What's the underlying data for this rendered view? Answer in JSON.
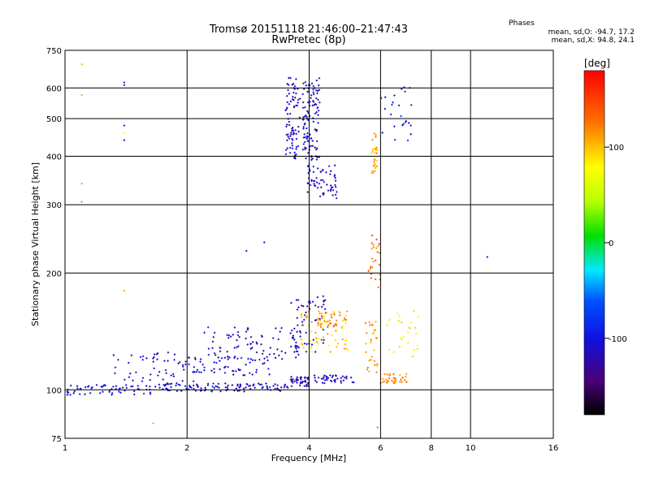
{
  "header": {
    "title_line1": "Tromsø 20151118 21:46:00–21:47:43",
    "title_line2": "RwPretec (8p)",
    "stats_title": "Phases",
    "stats_o": "mean, sd,O: -94.7, 17.2",
    "stats_x": "mean, sd,X:  94.8, 24.1"
  },
  "colorbar": {
    "unit_label": "[deg]",
    "range": [
      -180,
      180
    ],
    "ticks": [
      {
        "value": 100,
        "label": "100"
      },
      {
        "value": 0,
        "label": "0"
      },
      {
        "value": -100,
        "label": "-100"
      }
    ]
  },
  "chart_data": {
    "type": "scatter",
    "title": "Tromsø 20151118 21:46:00–21:47:43",
    "subtitle": "RwPretec (8p)",
    "xlabel": "Frequency [MHz]",
    "ylabel": "Stationary phase Virtual Height [km]",
    "xscale": "log",
    "yscale": "log",
    "xlim": [
      1,
      16
    ],
    "ylim": [
      75,
      750
    ],
    "grid": true,
    "x_ticks": [
      {
        "value": 1,
        "label": "1"
      },
      {
        "value": 2,
        "label": "2"
      },
      {
        "value": 4,
        "label": "4"
      },
      {
        "value": 6,
        "label": "6"
      },
      {
        "value": 8,
        "label": "8"
      },
      {
        "value": 10,
        "label": "10"
      },
      {
        "value": 16,
        "label": "16"
      }
    ],
    "y_ticks": [
      {
        "value": 75,
        "label": "75"
      },
      {
        "value": 100,
        "label": "100"
      },
      {
        "value": 200,
        "label": "200"
      },
      {
        "value": 300,
        "label": "300"
      },
      {
        "value": 400,
        "label": "400"
      },
      {
        "value": 500,
        "label": "500"
      },
      {
        "value": 600,
        "label": "600"
      },
      {
        "value": 750,
        "label": "750"
      }
    ],
    "color_variable": "phase [deg]",
    "clusters": [
      {
        "x_range": [
          1.0,
          1.7
        ],
        "y_range": [
          97,
          103
        ],
        "phase": -110,
        "count": 60
      },
      {
        "x_range": [
          1.7,
          3.6
        ],
        "y_range": [
          99,
          104
        ],
        "phase": -110,
        "count": 110
      },
      {
        "x_range": [
          3.6,
          4.0
        ],
        "y_range": [
          102,
          108
        ],
        "phase": -120,
        "count": 40
      },
      {
        "x_range": [
          4.1,
          5.2
        ],
        "y_range": [
          104,
          109
        ],
        "phase": -110,
        "count": 40
      },
      {
        "x_range": [
          1.3,
          2.2
        ],
        "y_range": [
          105,
          125
        ],
        "phase": -110,
        "count": 50
      },
      {
        "x_range": [
          1.9,
          3.2
        ],
        "y_range": [
          109,
          122
        ],
        "phase": -105,
        "count": 60
      },
      {
        "x_range": [
          2.2,
          3.8
        ],
        "y_range": [
          120,
          145
        ],
        "phase": -110,
        "count": 80
      },
      {
        "x_range": [
          3.6,
          4.4
        ],
        "y_range": [
          125,
          175
        ],
        "phase": -115,
        "count": 60
      },
      {
        "x_range": [
          3.8,
          5.0
        ],
        "y_range": [
          125,
          160
        ],
        "phase": 100,
        "count": 70
      },
      {
        "x_range": [
          4.2,
          4.9
        ],
        "y_range": [
          145,
          160
        ],
        "phase": 120,
        "count": 30
      },
      {
        "x_range": [
          5.5,
          5.9
        ],
        "y_range": [
          110,
          150
        ],
        "phase": 110,
        "count": 30
      },
      {
        "x_range": [
          6.0,
          7.0
        ],
        "y_range": [
          104,
          110
        ],
        "phase": 120,
        "count": 35
      },
      {
        "x_range": [
          6.2,
          7.5
        ],
        "y_range": [
          120,
          160
        ],
        "phase": 80,
        "count": 25
      },
      {
        "x_range": [
          3.5,
          3.8
        ],
        "y_range": [
          390,
          640
        ],
        "phase": -110,
        "count": 80
      },
      {
        "x_range": [
          3.85,
          4.25
        ],
        "y_range": [
          390,
          640
        ],
        "phase": -110,
        "count": 110
      },
      {
        "x_range": [
          3.95,
          4.7
        ],
        "y_range": [
          310,
          380
        ],
        "phase": -110,
        "count": 60
      },
      {
        "x_range": [
          5.7,
          5.9
        ],
        "y_range": [
          360,
          460
        ],
        "phase": 110,
        "count": 30
      },
      {
        "x_range": [
          5.6,
          6.0
        ],
        "y_range": [
          180,
          250
        ],
        "phase": 130,
        "count": 25
      },
      {
        "x_range": [
          6.0,
          7.2
        ],
        "y_range": [
          420,
          620
        ],
        "phase": -90,
        "count": 25
      }
    ],
    "isolated_points": [
      {
        "x": 1.1,
        "y": 690,
        "phase": 100
      },
      {
        "x": 1.1,
        "y": 575,
        "phase": 110
      },
      {
        "x": 1.1,
        "y": 340,
        "phase": 110
      },
      {
        "x": 1.1,
        "y": 305,
        "phase": 120
      },
      {
        "x": 1.4,
        "y": 620,
        "phase": -110
      },
      {
        "x": 1.4,
        "y": 610,
        "phase": -110
      },
      {
        "x": 1.4,
        "y": 480,
        "phase": -110
      },
      {
        "x": 1.4,
        "y": 460,
        "phase": 80
      },
      {
        "x": 1.4,
        "y": 440,
        "phase": -110
      },
      {
        "x": 2.8,
        "y": 228,
        "phase": -110
      },
      {
        "x": 3.1,
        "y": 240,
        "phase": -110
      },
      {
        "x": 11.0,
        "y": 220,
        "phase": -100
      },
      {
        "x": 1.4,
        "y": 180,
        "phase": 110
      },
      {
        "x": 1.65,
        "y": 82,
        "phase": 110
      },
      {
        "x": 5.9,
        "y": 80,
        "phase": 10
      }
    ]
  }
}
